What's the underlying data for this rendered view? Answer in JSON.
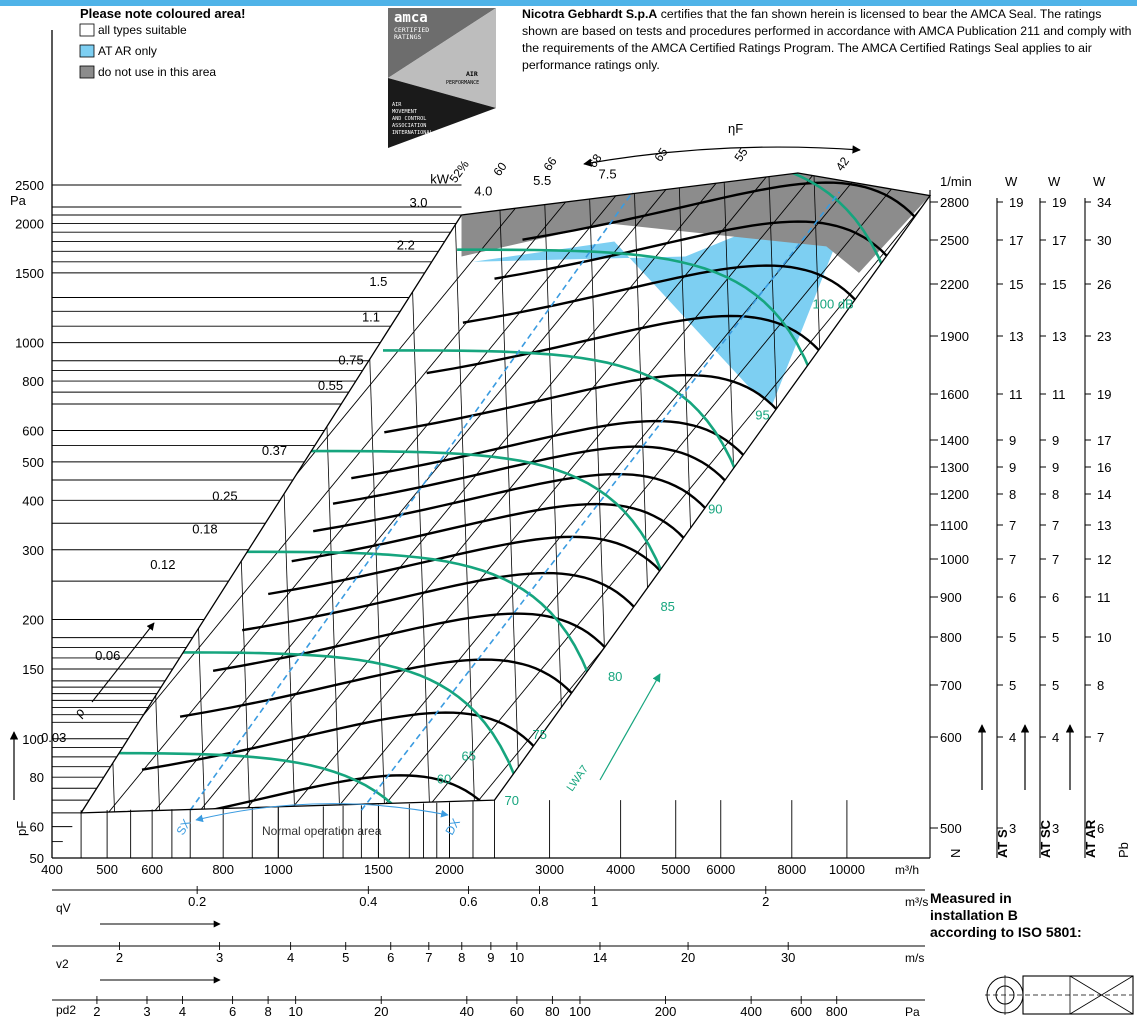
{
  "legend": {
    "title": "Please note coloured area!",
    "items": [
      {
        "label": "all types suitable",
        "color": "#ffffff"
      },
      {
        "label": "AT AR only",
        "color": "#7dcff2"
      },
      {
        "label": "do not use in this area",
        "color": "#8c8c8c"
      }
    ]
  },
  "amca_seal": {
    "line1": "amca",
    "line2": "CERTIFIED",
    "line3": "RATINGS",
    "line4": "AIR",
    "line5": "PERFORMANCE",
    "line6": "AIR",
    "line7": "MOVEMENT",
    "line8": "AND CONTROL",
    "line9": "ASSOCIATION",
    "line10": "INTERNATIONAL, INC.®"
  },
  "certification": {
    "company": "Nicotra Gebhardt S.p.A",
    "text": "certifies that the fan shown herein is licensed to bear the AMCA Seal. The ratings shown are based on tests and procedures performed in accordance with AMCA Publication 211 and comply with the requirements of the AMCA Certified Ratings Program. The AMCA Certified Ratings Seal applies to air performance ratings only."
  },
  "measured_note": {
    "line1": "Measured in",
    "line2": "installation B",
    "line3": "according to ISO 5801:"
  },
  "colors": {
    "accent_blue": "#4fb3e8",
    "at_ar_area": "#7dcff2",
    "no_use_area": "#8c8c8c",
    "sound_curves": "#16a57e",
    "system_lines": "#3a9be0"
  },
  "chart_data": {
    "type": "line",
    "title": "",
    "ylabel": "pF",
    "y_unit": "Pa",
    "y_scale": "log",
    "ylim": [
      50,
      2500
    ],
    "y_ticks": [
      50,
      60,
      80,
      100,
      150,
      200,
      300,
      400,
      500,
      600,
      800,
      1000,
      1500,
      2000,
      2500
    ],
    "x_scale": "log",
    "x_unit": "m³/h",
    "xlim": [
      400,
      14000
    ],
    "x_ticks": [
      400,
      500,
      600,
      800,
      1000,
      1500,
      2000,
      3000,
      4000,
      5000,
      6000,
      8000,
      10000
    ],
    "qv_axis": {
      "label": "qV",
      "unit": "m³/s",
      "ticks": [
        0.2,
        0.4,
        0.6,
        0.8,
        1,
        2
      ]
    },
    "v2_axis": {
      "label": "v2",
      "unit": "m/s",
      "ticks": [
        2,
        3,
        4,
        5,
        6,
        7,
        8,
        9,
        10,
        14,
        20,
        30
      ]
    },
    "pd2_axis": {
      "label": "pd2",
      "unit": "Pa",
      "ticks": [
        2,
        3,
        4,
        6,
        8,
        10,
        20,
        40,
        60,
        80,
        100,
        200,
        400,
        600,
        800
      ]
    },
    "speed_scale": {
      "unit": "1/min",
      "values": [
        500,
        600,
        700,
        800,
        900,
        1000,
        1100,
        1200,
        1300,
        1400,
        1600,
        1900,
        2200,
        2500,
        2800
      ]
    },
    "side_tables": {
      "headers": [
        "W",
        "W",
        "W"
      ],
      "footers": [
        "AT S",
        "AT SC",
        "AT AR"
      ],
      "n_label": "N",
      "pb_label": "Pb",
      "rows": [
        {
          "rpm": 500,
          "at_s": 3,
          "at_sc": 3,
          "at_ar": 6
        },
        {
          "rpm": 600,
          "at_s": 4,
          "at_sc": 4,
          "at_ar": 7
        },
        {
          "rpm": 700,
          "at_s": 5,
          "at_sc": 5,
          "at_ar": 8
        },
        {
          "rpm": 800,
          "at_s": 5,
          "at_sc": 5,
          "at_ar": 10
        },
        {
          "rpm": 900,
          "at_s": 6,
          "at_sc": 6,
          "at_ar": 11
        },
        {
          "rpm": 1000,
          "at_s": 7,
          "at_sc": 7,
          "at_ar": 12
        },
        {
          "rpm": 1100,
          "at_s": 7,
          "at_sc": 7,
          "at_ar": 13
        },
        {
          "rpm": 1200,
          "at_s": 8,
          "at_sc": 8,
          "at_ar": 14
        },
        {
          "rpm": 1300,
          "at_s": 9,
          "at_sc": 9,
          "at_ar": 16
        },
        {
          "rpm": 1400,
          "at_s": 9,
          "at_sc": 9,
          "at_ar": 17
        },
        {
          "rpm": 1600,
          "at_s": 11,
          "at_sc": 11,
          "at_ar": 19
        },
        {
          "rpm": 1900,
          "at_s": 13,
          "at_sc": 13,
          "at_ar": 23
        },
        {
          "rpm": 2200,
          "at_s": 15,
          "at_sc": 15,
          "at_ar": 26
        },
        {
          "rpm": 2500,
          "at_s": 17,
          "at_sc": 17,
          "at_ar": 30
        },
        {
          "rpm": 2800,
          "at_s": 19,
          "at_sc": 19,
          "at_ar": 34
        }
      ]
    },
    "power_unit": "kW",
    "power_labels": [
      "0.03",
      "0.06",
      "0.12",
      "0.18",
      "0.25",
      "0.37",
      "0.55",
      "0.75",
      "1.1",
      "1.5",
      "2.2",
      "3.0",
      "4.0",
      "5.5",
      "7.5"
    ],
    "efficiency_label": "ηF",
    "efficiency_labels": [
      "52%",
      "60",
      "66",
      "68",
      "65",
      "55",
      "42"
    ],
    "sound_labels": [
      "60",
      "65",
      "70",
      "75",
      "80",
      "85",
      "90",
      "95",
      "100 dB"
    ],
    "sound_level_label": "LWA7",
    "density_label": "ρ",
    "system_lines": [
      "SX",
      "DX"
    ],
    "annotation": "Normal operation area"
  }
}
